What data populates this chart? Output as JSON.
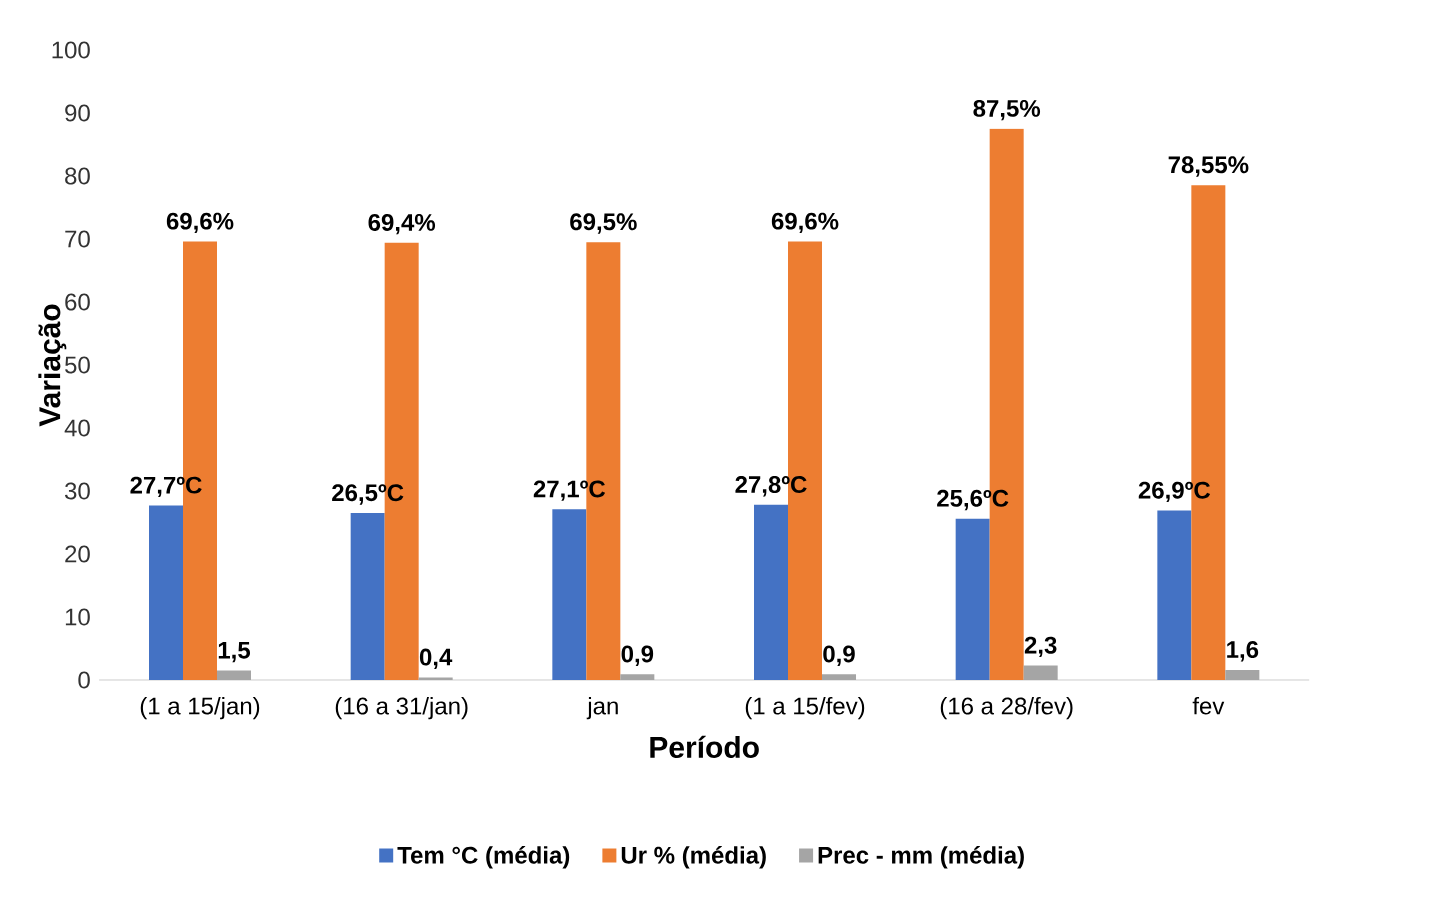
{
  "chart_data": {
    "type": "bar",
    "xlabel": "Período",
    "ylabel": "Variação",
    "categories": [
      "(1 a 15/jan)",
      "(16 a 31/jan)",
      "jan",
      "(1 a 15/fev)",
      "(16 a 28/fev)",
      "fev"
    ],
    "series": [
      {
        "name": "Tem °C (média)",
        "color": "#4472c4",
        "values": [
          27.7,
          26.5,
          27.1,
          27.8,
          25.6,
          26.9
        ],
        "value_labels": [
          "27,7ºC",
          "26,5ºC",
          "27,1ºC",
          "27,8ºC",
          "25,6ºC",
          "26,9ºC"
        ]
      },
      {
        "name": "Ur %  (média)",
        "color": "#ed7d31",
        "values": [
          69.6,
          69.4,
          69.5,
          69.6,
          87.5,
          78.55
        ],
        "value_labels": [
          "69,6%",
          "69,4%",
          "69,5%",
          "69,6%",
          "87,5%",
          "78,55%"
        ]
      },
      {
        "name": "Prec - mm (média)",
        "color": "#a5a5a5",
        "values": [
          1.5,
          0.4,
          0.9,
          0.9,
          2.3,
          1.6
        ],
        "value_labels": [
          "1,5",
          "0,4",
          "0,9",
          "0,9",
          "2,3",
          "1,6"
        ]
      }
    ],
    "ylim": [
      0,
      100
    ],
    "yticks": [
      0,
      10,
      20,
      30,
      40,
      50,
      60,
      70,
      80,
      90,
      100
    ],
    "legend": "bottom"
  }
}
